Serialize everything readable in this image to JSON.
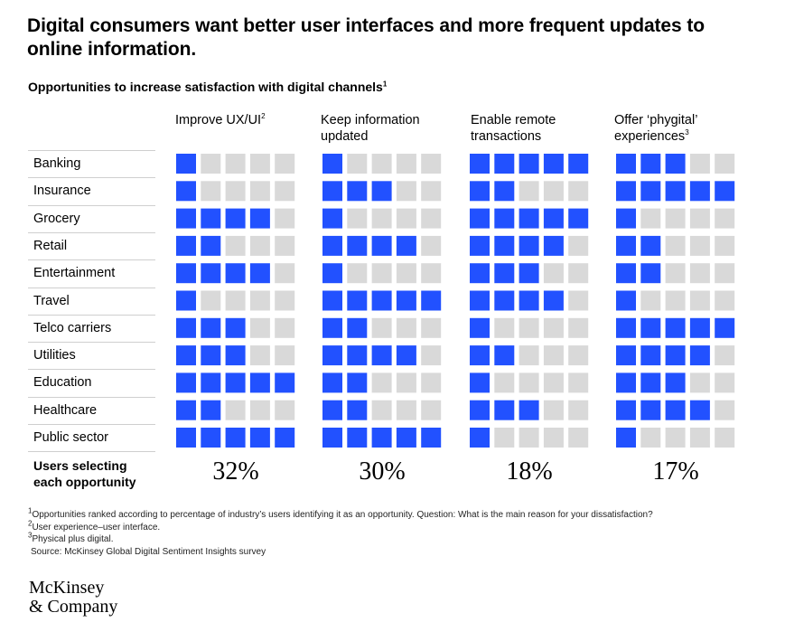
{
  "title": "Digital consumers want better user interfaces and more frequent updates to online information.",
  "subtitle": "Opportunities to increase satisfaction with digital channels",
  "subtitle_note": "1",
  "chart_data": {
    "type": "table",
    "title": "Opportunities to increase satisfaction with digital channels",
    "scale_max": 5,
    "colors": {
      "filled": "#2251ff",
      "empty": "#d9d9d9"
    },
    "columns": [
      {
        "label": "Improve UX/UI",
        "note": "2",
        "total": "32%"
      },
      {
        "label": "Keep information updated",
        "note": "",
        "total": "30%"
      },
      {
        "label": "Enable remote transactions",
        "note": "",
        "total": "18%"
      },
      {
        "label": "Offer ‘phygital’ experiences",
        "note": "3",
        "total": "17%"
      }
    ],
    "rows": [
      {
        "label": "Banking",
        "values": [
          1,
          1,
          5,
          3
        ]
      },
      {
        "label": "Insurance",
        "values": [
          1,
          3,
          2,
          5
        ]
      },
      {
        "label": "Grocery",
        "values": [
          4,
          1,
          5,
          1
        ]
      },
      {
        "label": "Retail",
        "values": [
          2,
          4,
          4,
          2
        ]
      },
      {
        "label": "Entertainment",
        "values": [
          4,
          1,
          3,
          2
        ]
      },
      {
        "label": "Travel",
        "values": [
          1,
          5,
          4,
          1
        ]
      },
      {
        "label": "Telco carriers",
        "values": [
          3,
          2,
          1,
          5
        ]
      },
      {
        "label": "Utilities",
        "values": [
          3,
          4,
          2,
          4
        ]
      },
      {
        "label": "Education",
        "values": [
          5,
          2,
          1,
          3
        ]
      },
      {
        "label": "Healthcare",
        "values": [
          2,
          2,
          3,
          4
        ]
      },
      {
        "label": "Public sector",
        "values": [
          5,
          5,
          1,
          1
        ]
      }
    ],
    "summary_label": "Users selecting each opportunity"
  },
  "footnotes": [
    {
      "mark": "1",
      "text": "Opportunities ranked according to percentage of industry’s users identifying it as an opportunity. Question: What is the main reason for your dissatisfaction?"
    },
    {
      "mark": "2",
      "text": "User experience–user interface."
    },
    {
      "mark": "3",
      "text": "Physical plus digital."
    }
  ],
  "source": "Source: McKinsey Global Digital Sentiment Insights survey",
  "logo": {
    "line1": "McKinsey",
    "line2": "& Company"
  }
}
